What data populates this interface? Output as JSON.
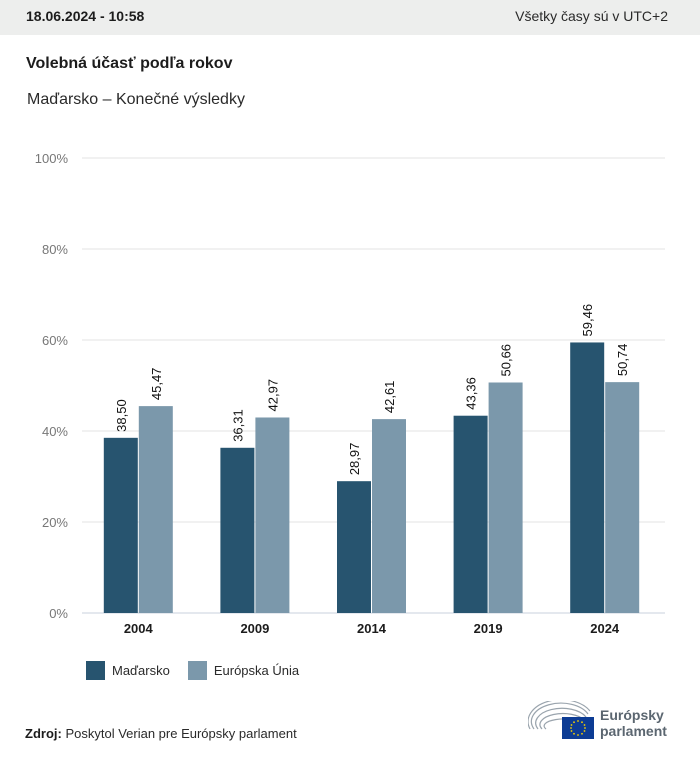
{
  "header": {
    "datetime": "18.06.2024 - 10:58",
    "timezone_note": "Všetky časy sú v UTC+2"
  },
  "title": "Volebná účasť podľa rokov",
  "subtitle": "Maďarsko – Konečné výsledky",
  "colors": {
    "series_country": "#27546f",
    "series_eu": "#7b98ab",
    "grid": "#e3e3e3",
    "axis": "#c8d2dc",
    "topbar": "#edeeed"
  },
  "chart_data": {
    "type": "bar",
    "title": "Volebná účasť podľa rokov",
    "subtitle": "Maďarsko – Konečné výsledky",
    "xlabel": "",
    "ylabel": "",
    "categories": [
      "2004",
      "2009",
      "2014",
      "2019",
      "2024"
    ],
    "series": [
      {
        "name": "Maďarsko",
        "values": [
          38.5,
          36.31,
          28.97,
          43.36,
          59.46
        ],
        "labels": [
          "38,50",
          "36,31",
          "28,97",
          "43,36",
          "59,46"
        ]
      },
      {
        "name": "Európska Únia",
        "values": [
          45.47,
          42.97,
          42.61,
          50.66,
          50.74
        ],
        "labels": [
          "45,47",
          "42,97",
          "42,61",
          "50,66",
          "50,74"
        ]
      }
    ],
    "ylim": [
      0,
      100
    ],
    "yticks": [
      0,
      20,
      40,
      60,
      80,
      100
    ],
    "ytick_labels": [
      "0%",
      "20%",
      "40%",
      "60%",
      "80%",
      "100%"
    ],
    "grid": true,
    "legend_position": "bottom-left"
  },
  "legend": {
    "items": [
      "Maďarsko",
      "Európska Únia"
    ]
  },
  "footer": {
    "source_label": "Zdroj:",
    "source_text": "Poskytol Verian pre Európsky parlament",
    "logo_line1": "Európsky",
    "logo_line2": "parlament"
  }
}
